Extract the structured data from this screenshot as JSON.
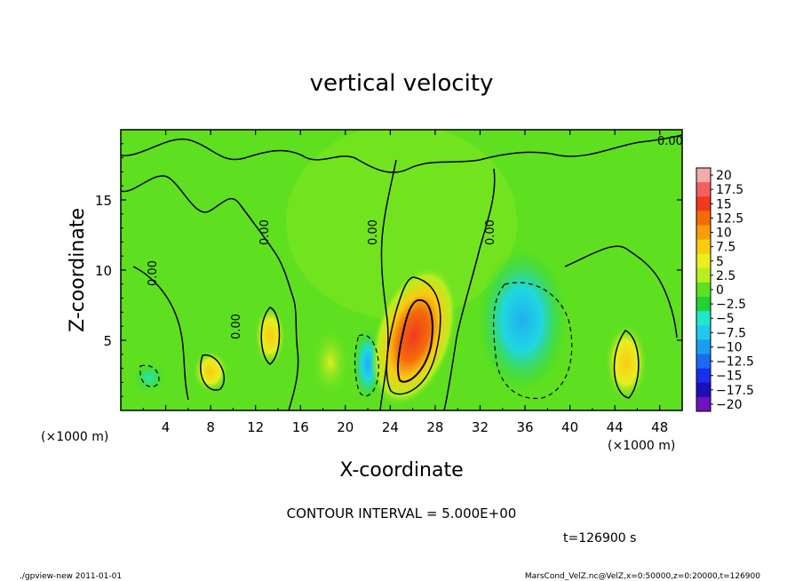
{
  "chart_data": {
    "type": "heatmap",
    "title": "vertical velocity",
    "xlabel": "X-coordinate",
    "ylabel": "Z-coordinate",
    "x_unit": "(×1000 m)",
    "y_unit": "(×1000 m)",
    "xlim": [
      0,
      50
    ],
    "ylim": [
      0,
      20
    ],
    "x_ticks": [
      "4",
      "8",
      "12",
      "16",
      "20",
      "24",
      "28",
      "32",
      "36",
      "40",
      "44",
      "48"
    ],
    "y_ticks": [
      "5",
      "10",
      "15"
    ],
    "colorbar_levels": [
      "20",
      "17.5",
      "15",
      "12.5",
      "10",
      "7.5",
      "5",
      "2.5",
      "0",
      "−2.5",
      "−5",
      "−7.5",
      "−10",
      "−12.5",
      "−15",
      "−17.5",
      "−20"
    ],
    "colorbar_colors": [
      "#f7a8a8",
      "#f46060",
      "#f03a20",
      "#f46a0a",
      "#f89e08",
      "#f8cc10",
      "#e8ee20",
      "#b6ee20",
      "#5ee020",
      "#20d238",
      "#20e8c8",
      "#20c8f0",
      "#1a9ef2",
      "#1a6af2",
      "#1a2ef0",
      "#1a10b8",
      "#7010c0"
    ],
    "contour_labels": [
      "0.00",
      "0.00",
      "0.00",
      "0.00",
      "0.00",
      "0.00"
    ],
    "features": [
      {
        "kind": "updraft",
        "x": 26,
        "z": 5.5,
        "peak": 15
      },
      {
        "kind": "updraft",
        "x": 13.3,
        "z": 5.8,
        "peak": 7.5
      },
      {
        "kind": "updraft",
        "x": 8.0,
        "z": 2.8,
        "peak": 7.5
      },
      {
        "kind": "updraft",
        "x": 45.5,
        "z": 3.5,
        "peak": 7.5
      },
      {
        "kind": "downdraft",
        "x": 36,
        "z": 5.5,
        "peak": -7.5
      },
      {
        "kind": "downdraft",
        "x": 22,
        "z": 3.5,
        "peak": -5
      },
      {
        "kind": "downdraft",
        "x": 2.5,
        "z": 2.5,
        "peak": -2.5
      }
    ]
  },
  "annotations": {
    "contour_interval": "CONTOUR INTERVAL = 5.000E+00",
    "time": "t=126900 s",
    "footer_left": "./gpview-new   2011-01-01",
    "footer_right": "MarsCond_VelZ.nc@VelZ,x=0:50000,z=0:20000,t=126900"
  }
}
